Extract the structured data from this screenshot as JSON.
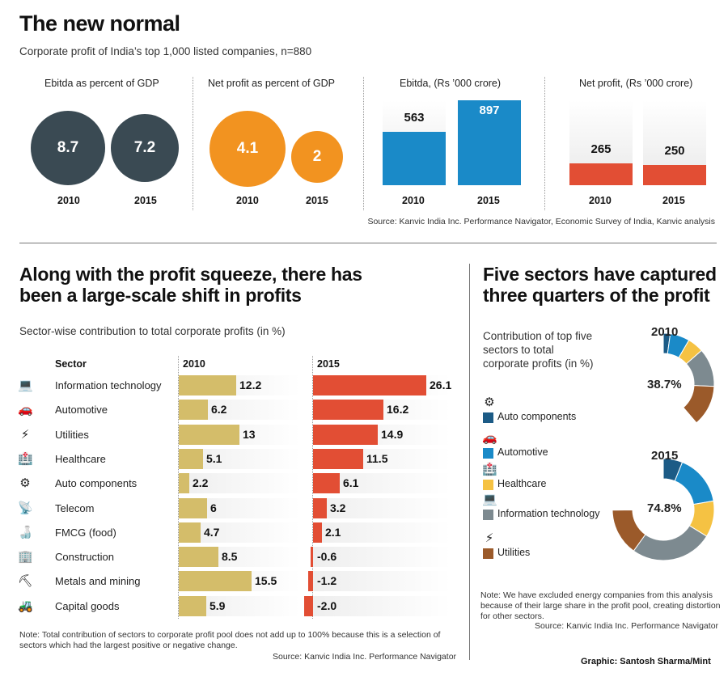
{
  "top": {
    "title": "The new normal",
    "subtitle": "Corporate profit of India’s top 1,000 listed companies, n=880",
    "source": "Source: Kanvic India Inc. Performance Navigator, Economic Survey of India, Kanvic analysis",
    "colors": {
      "dark": "#3a4a53",
      "orange": "#f29320",
      "blue": "#1a8ac8",
      "red": "#e24e34"
    }
  },
  "chart_data": [
    {
      "type": "bubble",
      "title": "Ebitda as percent of GDP",
      "categories": [
        "2010",
        "2015"
      ],
      "values": [
        8.7,
        7.2
      ]
    },
    {
      "type": "bubble",
      "title": "Net profit as percent of GDP",
      "categories": [
        "2010",
        "2015"
      ],
      "values": [
        4.1,
        2
      ]
    },
    {
      "type": "bar",
      "title": "Ebitda, (Rs ’000 crore)",
      "categories": [
        "2010",
        "2015"
      ],
      "values": [
        563,
        897
      ]
    },
    {
      "type": "bar",
      "title": "Net profit, (Rs ’000 crore)",
      "categories": [
        "2010",
        "2015"
      ],
      "values": [
        265,
        250
      ]
    },
    {
      "type": "bar",
      "title": "Along with the profit squeeze, there has been a large-scale shift in profits",
      "subtitle": "Sector-wise contribution to total corporate profits (in %)",
      "column_header": "Sector",
      "categories": [
        "Information technology",
        "Automotive",
        "Utilities",
        "Healthcare",
        "Auto components",
        "Telecom",
        "FMCG (food)",
        "Construction",
        "Metals and mining",
        "Capital goods"
      ],
      "icons": [
        "laptop-icon",
        "car-icon",
        "pylon-icon",
        "hospital-icon",
        "wheel-icon",
        "antenna-icon",
        "bottles-icon",
        "building-icon",
        "miner-icon",
        "forklift-icon"
      ],
      "series": [
        {
          "name": "2010",
          "values": [
            12.2,
            6.2,
            13,
            5.1,
            2.2,
            6,
            4.7,
            8.5,
            15.5,
            5.9
          ],
          "labels": [
            "12.2",
            "6.2",
            "13",
            "5.1",
            "2.2",
            "6",
            "4.7",
            "8.5",
            "15.5",
            "5.9"
          ],
          "color": "#d4bd6a"
        },
        {
          "name": "2015",
          "values": [
            26.1,
            16.2,
            14.9,
            11.5,
            6.1,
            3.2,
            2.1,
            -0.6,
            -1.2,
            -2.0
          ],
          "labels": [
            "26.1",
            "16.2",
            "14.9",
            "11.5",
            "6.1",
            "3.2",
            "2.1",
            "-0.6",
            "-1.2",
            "-2.0"
          ],
          "color": "#e24e34"
        }
      ],
      "note": "Note: Total contribution of sectors to corporate profit pool does not add up to 100% because this is a selection of sectors which had the largest positive or negative change.",
      "source": "Source: Kanvic India Inc. Performance Navigator"
    },
    {
      "type": "pie",
      "title": "Five sectors have captured three quarters of the profit",
      "subtitle": "Contribution of top five sectors to total corporate profits (in %)",
      "legend": [
        {
          "name": "Auto components",
          "color": "#1c5b86",
          "icon": "wheel-icon"
        },
        {
          "name": "Automotive",
          "color": "#1a8ac8",
          "icon": "car-icon"
        },
        {
          "name": "Healthcare",
          "color": "#f5c243",
          "icon": "hospital-icon"
        },
        {
          "name": "Information technology",
          "color": "#7d8a90",
          "icon": "laptop-icon"
        },
        {
          "name": "Utilities",
          "color": "#9b5a2a",
          "icon": "pylon-icon"
        }
      ],
      "donuts": [
        {
          "year": "2010",
          "total_label": "38.7%",
          "values": [
            2.2,
            6.2,
            5.1,
            12.2,
            13
          ],
          "total": 38.7
        },
        {
          "year": "2015",
          "total_label": "74.8%",
          "values": [
            6.1,
            16.2,
            11.5,
            26.1,
            14.9
          ],
          "total": 74.8
        }
      ],
      "note": "Note: We have excluded energy companies from this analysis because of their large share in the profit pool, creating distortion for other sectors.",
      "source": "Source: Kanvic India Inc. Performance Navigator"
    }
  ],
  "credit": "Graphic: Santosh Sharma/Mint"
}
